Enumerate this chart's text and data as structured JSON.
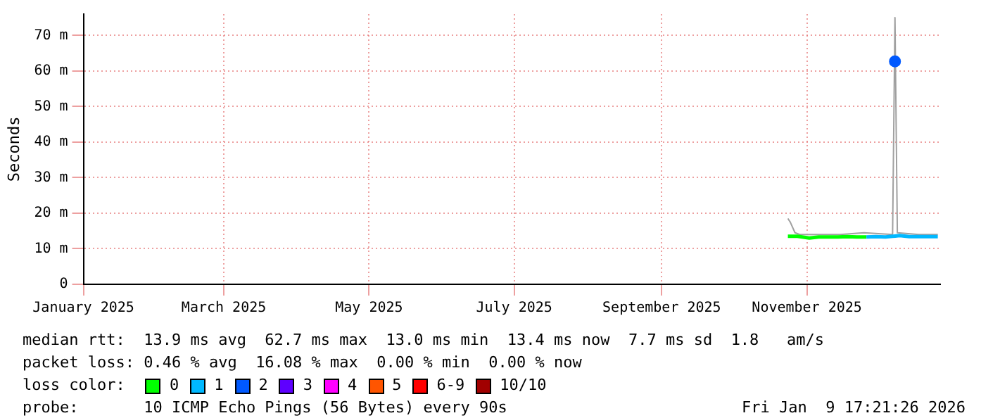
{
  "chart_data": {
    "type": "line",
    "ylabel": "Seconds",
    "legend_title": "loss color:",
    "legend": "bottom",
    "grid": true,
    "line_style": "solid",
    "xlim": [
      "2025-01-01",
      "2025-12-27"
    ],
    "xticks": [
      {
        "value": "2025-01-01",
        "label": "January 2025"
      },
      {
        "value": "2025-03-01",
        "label": "March 2025"
      },
      {
        "value": "2025-05-01",
        "label": "May 2025"
      },
      {
        "value": "2025-07-01",
        "label": "July 2025"
      },
      {
        "value": "2025-09-01",
        "label": "September 2025"
      },
      {
        "value": "2025-11-01",
        "label": "November 2025"
      }
    ],
    "ylim": [
      0,
      76
    ],
    "yticks": [
      0,
      {
        "value": 10,
        "label": "10 m"
      },
      {
        "value": 20,
        "label": "20 m"
      },
      {
        "value": 30,
        "label": "30 m"
      },
      {
        "value": 40,
        "label": "40 m"
      },
      {
        "value": 50,
        "label": "50 m"
      },
      {
        "value": 60,
        "label": "60 m"
      },
      {
        "value": 70,
        "label": "70 m"
      }
    ],
    "series": [
      {
        "color": "#a0a0a0",
        "x": [
          "2025-10-24",
          "2025-10-25",
          "2025-10-27",
          "2025-10-29",
          "2025-11-05",
          "2025-11-15",
          "2025-11-25",
          "2025-12-07",
          "2025-12-08",
          "2025-12-09",
          "2025-12-18",
          "2025-12-26"
        ],
        "values": [
          18.5,
          17.5,
          14.5,
          14,
          14,
          14,
          14.5,
          14,
          75,
          14.5,
          14,
          14
        ]
      },
      {
        "name": "0",
        "color": "#00ff00",
        "x": [
          "2025-10-24",
          "2025-10-28",
          "2025-11-02",
          "2025-11-06",
          "2025-11-10",
          "2025-11-14",
          "2025-11-18",
          "2025-11-22",
          "2025-11-26"
        ],
        "values": [
          13.5,
          13.5,
          13,
          13.3,
          13.3,
          13.3,
          13.4,
          13.3,
          13.3
        ]
      },
      {
        "name": "1",
        "color": "#00b8ff",
        "x": [
          "2025-11-26",
          "2025-11-30",
          "2025-12-04",
          "2025-12-07",
          "2025-12-10",
          "2025-12-14",
          "2025-12-18",
          "2025-12-22",
          "2025-12-26"
        ],
        "values": [
          13.3,
          13.4,
          13.3,
          13.5,
          13.7,
          13.4,
          13.4,
          13.4,
          13.4
        ]
      },
      {
        "name": "2",
        "color": "#0059ff",
        "marker": "circle",
        "x": [
          "2025-12-08"
        ],
        "values": [
          62.7
        ]
      },
      {
        "name": "3",
        "color": "#5e00ff"
      },
      {
        "name": "4",
        "color": "#ff00ff"
      },
      {
        "name": "5",
        "color": "#ff5500"
      },
      {
        "name": "6-9",
        "color": "#ff0000"
      },
      {
        "name": "10/10",
        "color": "#a10000"
      }
    ],
    "annotations": [
      "median rtt:  13.9 ms avg  62.7 ms max  13.0 ms min  13.4 ms now  7.7 ms sd  1.8   am/s",
      "packet loss: 0.46 % avg  16.08 % max  0.00 % min  0.00 % now",
      "probe:       10 ICMP Echo Pings (56 Bytes) every 90s",
      "Fri Jan  9 17:21:26 2026"
    ]
  }
}
